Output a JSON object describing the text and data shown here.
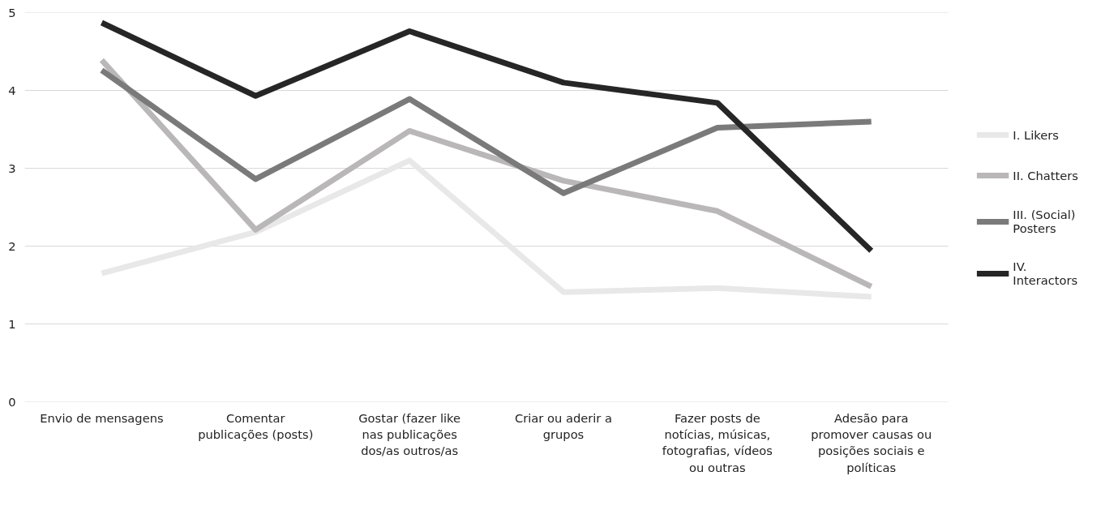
{
  "chart_data": {
    "type": "line",
    "categories": [
      "Envio de mensagens",
      "Comentar\npublicações (posts)",
      "Gostar (fazer like\nnas publicações\ndos/as outros/as",
      "Criar ou aderir a\ngrupos",
      "Fazer posts de\nnotícias, músicas,\nfotografias, vídeos\nou outras",
      "Adesão para\npromover causas ou\nposições sociais e\npolíticas"
    ],
    "series": [
      {
        "name": "I. Likers",
        "color": "#e8e8e8",
        "values": [
          1.65,
          2.18,
          3.1,
          1.41,
          1.46,
          1.35
        ]
      },
      {
        "name": "II. Chatters",
        "color": "#b9b7b7",
        "values": [
          4.39,
          2.21,
          3.48,
          2.84,
          2.45,
          1.48
        ]
      },
      {
        "name": "III. (Social)\nPosters",
        "color": "#7a7a7a",
        "values": [
          4.26,
          2.86,
          3.89,
          2.68,
          3.52,
          3.6
        ]
      },
      {
        "name": "IV.\nInteractors",
        "color": "#262626",
        "values": [
          4.87,
          3.93,
          4.76,
          4.1,
          3.84,
          1.94
        ]
      }
    ],
    "ylim": [
      0,
      5
    ],
    "yticks": [
      0,
      1,
      2,
      3,
      4,
      5
    ],
    "grid": "y",
    "legend": "right",
    "marker": "none",
    "line_style": "solid"
  }
}
